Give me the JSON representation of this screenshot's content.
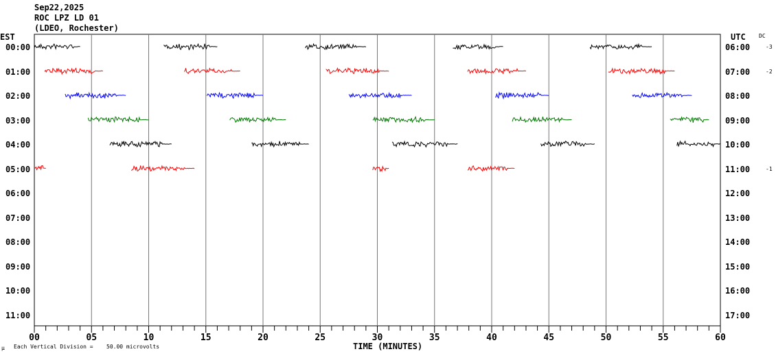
{
  "header": {
    "date": "Sep22,2025",
    "station": "ROC LPZ LD 01",
    "network": "(LDEO, Rochester)"
  },
  "left_timezone": "EST",
  "right_timezone": "UTC",
  "dc_label": "DC",
  "footer": {
    "mu": "µ",
    "scale_label": "Each Vertical Division =",
    "scale_value": "50.00 microvolts"
  },
  "chart_data": {
    "type": "line",
    "subtype": "helicorder",
    "xlabel": "TIME (MINUTES)",
    "xlim": [
      0,
      60
    ],
    "x_ticks": [
      "00",
      "05",
      "10",
      "15",
      "20",
      "25",
      "30",
      "35",
      "40",
      "45",
      "50",
      "55",
      "60"
    ],
    "grid": "vertical every 5 minutes",
    "rows": [
      {
        "left": "00:00",
        "right": "06:00",
        "dc": "-3",
        "color": "#000000",
        "segments": [
          [
            0,
            4
          ],
          [
            11.3,
            16
          ],
          [
            23.7,
            29
          ],
          [
            36.6,
            41
          ],
          [
            48.6,
            54
          ]
        ]
      },
      {
        "left": "01:00",
        "right": "07:00",
        "dc": "-2",
        "color": "#ff0000",
        "segments": [
          [
            0.9,
            6
          ],
          [
            13.1,
            18
          ],
          [
            25.5,
            31
          ],
          [
            37.9,
            43
          ],
          [
            50.2,
            56
          ]
        ]
      },
      {
        "left": "02:00",
        "right": "08:00",
        "dc": "",
        "color": "#0000ff",
        "segments": [
          [
            2.7,
            8
          ],
          [
            15.1,
            20
          ],
          [
            27.5,
            33
          ],
          [
            40.3,
            45
          ],
          [
            52.3,
            57.5
          ]
        ]
      },
      {
        "left": "03:00",
        "right": "09:00",
        "dc": "",
        "color": "#007700",
        "segments": [
          [
            4.7,
            10
          ],
          [
            17.1,
            22
          ],
          [
            29.6,
            35
          ],
          [
            41.8,
            47
          ],
          [
            55.6,
            59
          ]
        ]
      },
      {
        "left": "04:00",
        "right": "10:00",
        "dc": "",
        "color": "#000000",
        "segments": [
          [
            6.6,
            12
          ],
          [
            19,
            24
          ],
          [
            31.3,
            37
          ],
          [
            44.3,
            49
          ],
          [
            56.2,
            60
          ]
        ]
      },
      {
        "left": "05:00",
        "right": "11:00",
        "dc": "-1",
        "color": "#ff0000",
        "segments": [
          [
            0,
            1
          ],
          [
            8.5,
            14
          ],
          [
            29.6,
            31
          ],
          [
            37.9,
            42
          ]
        ]
      },
      {
        "left": "06:00",
        "right": "12:00",
        "dc": "",
        "color": "#0000ff",
        "segments": []
      },
      {
        "left": "07:00",
        "right": "13:00",
        "dc": "",
        "color": "#007700",
        "segments": []
      },
      {
        "left": "08:00",
        "right": "14:00",
        "dc": "",
        "color": "#000000",
        "segments": []
      },
      {
        "left": "09:00",
        "right": "15:00",
        "dc": "",
        "color": "#ff0000",
        "segments": []
      },
      {
        "left": "10:00",
        "right": "16:00",
        "dc": "",
        "color": "#0000ff",
        "segments": []
      },
      {
        "left": "11:00",
        "right": "17:00",
        "dc": "",
        "color": "#007700",
        "segments": []
      }
    ]
  }
}
